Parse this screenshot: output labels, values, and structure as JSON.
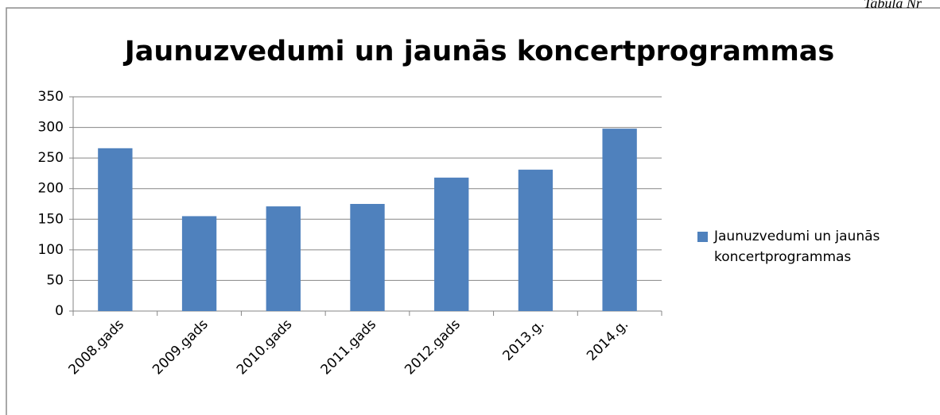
{
  "page_note": "Tabula Nr",
  "chart_data": {
    "type": "bar",
    "title": "Jaunuzvedumi un jaunās koncertprogrammas",
    "categories": [
      "2008.gads",
      "2009.gads",
      "2010.gads",
      "2011.gads",
      "2012.gads",
      "2013.g.",
      "2014.g."
    ],
    "series": [
      {
        "name": "Jaunuzvedumi un jaunās koncertprogrammas",
        "color": "#4f81bd",
        "values": [
          266,
          155,
          171,
          175,
          218,
          231,
          298
        ]
      }
    ],
    "ylim": [
      0,
      350
    ],
    "yticks": [
      0,
      50,
      100,
      150,
      200,
      250,
      300,
      350
    ],
    "grid": true,
    "legend": "right"
  }
}
